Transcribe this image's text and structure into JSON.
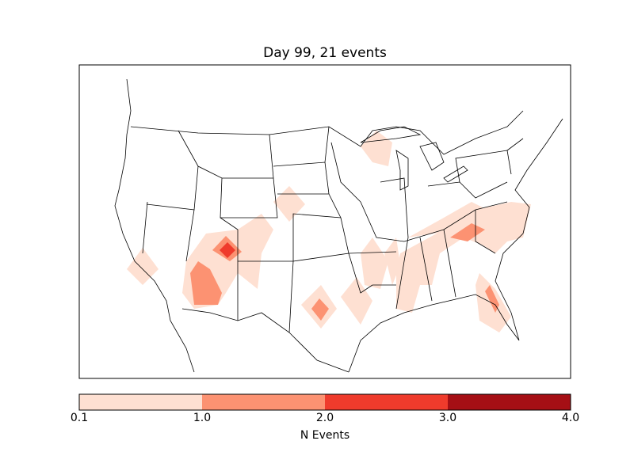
{
  "chart_data": {
    "type": "heatmap",
    "title": "Day 99, 21 events",
    "map_region": "Contiguous United States (with state borders)",
    "colorbar": {
      "label": "N Events",
      "ticks": [
        "0.1",
        "1.0",
        "2.0",
        "3.0",
        "4.0"
      ],
      "levels": [
        0.1,
        1.0,
        2.0,
        3.0,
        4.0
      ],
      "colors": [
        "#fee0d2",
        "#fc9272",
        "#ef3b2c",
        "#a50f15"
      ]
    },
    "event_regions": [
      {
        "area": "Southern California",
        "level": "0.1-1.0"
      },
      {
        "area": "Arizona / Utah / Colorado",
        "level": "0.1-1.0"
      },
      {
        "area": "Western Arizona",
        "level": "1.0-2.0"
      },
      {
        "area": "Four Corners (Utah/Colorado)",
        "level": "2.0-3.0"
      },
      {
        "area": "Nebraska / Colorado border",
        "level": "0.1-1.0"
      },
      {
        "area": "North Texas",
        "level": "1.0-2.0"
      },
      {
        "area": "East Texas",
        "level": "0.1-1.0"
      },
      {
        "area": "Arkansas / Louisiana",
        "level": "0.1-1.0"
      },
      {
        "area": "Mississippi / Alabama / Tennessee",
        "level": "0.1-1.0"
      },
      {
        "area": "Kentucky / Virginia / North Carolina",
        "level": "0.1-1.0"
      },
      {
        "area": "North Carolina",
        "level": "1.0-2.0"
      },
      {
        "area": "Wisconsin / Upper Michigan",
        "level": "0.1-1.0"
      },
      {
        "area": "Florida",
        "level": "1.0-2.0"
      }
    ]
  }
}
